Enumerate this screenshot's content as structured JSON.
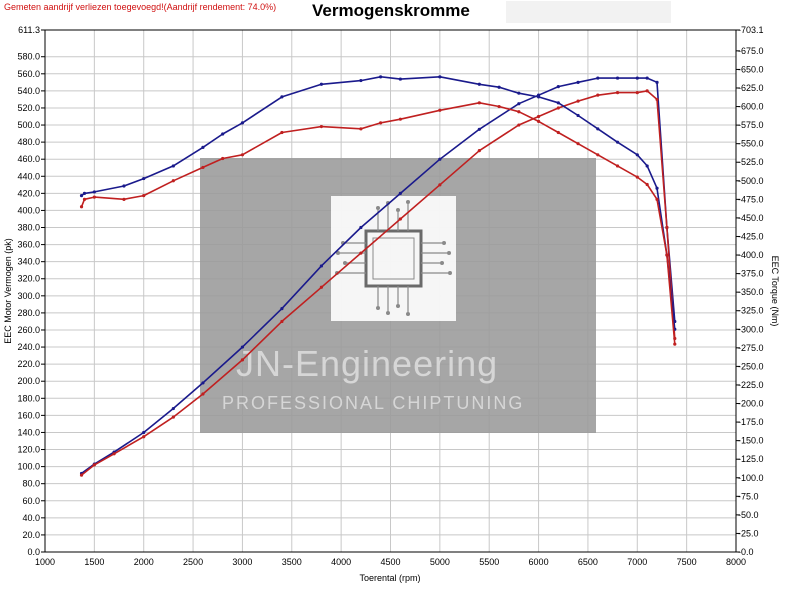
{
  "header": {
    "note": "Gemeten aandrijf verliezen toegevoegd!(Aandrijf rendement: 74.0%)",
    "title": "Vermogenskromme"
  },
  "watermark": {
    "brand": "JN-Engineering",
    "tagline": "PROFESSIONAL CHIPTUNING"
  },
  "chart_data": {
    "type": "line",
    "title": "Vermogenskromme",
    "xlabel": "Toerental (rpm)",
    "ylabel_left": "EEC Motor Vermogen (pk)",
    "ylabel_right": "EEC Torque (Nm)",
    "xlim": [
      1000,
      8000
    ],
    "ylim_left": [
      0,
      611.3
    ],
    "ylim_right": [
      0,
      703.1
    ],
    "grid": true,
    "x_ticks": [
      "1000",
      "1500",
      "2000",
      "2500",
      "3000",
      "3500",
      "4000",
      "4500",
      "5000",
      "5500",
      "6000",
      "6500",
      "7000",
      "7500",
      "8000"
    ],
    "left_ticks": [
      "0.0",
      "20.0",
      "40.0",
      "60.0",
      "80.0",
      "100.0",
      "120.0",
      "140.0",
      "160.0",
      "180.0",
      "200.0",
      "220.0",
      "240.0",
      "260.0",
      "280.0",
      "300.0",
      "320.0",
      "340.0",
      "360.0",
      "380.0",
      "400.0",
      "420.0",
      "440.0",
      "460.0",
      "480.0",
      "500.0",
      "520.0",
      "540.0",
      "560.0",
      "580.0",
      "611.3"
    ],
    "right_ticks": [
      "0.0",
      "25.0",
      "50.0",
      "75.0",
      "100.0",
      "125.0",
      "150.0",
      "175.0",
      "200.0",
      "225.0",
      "250.0",
      "275.0",
      "300.0",
      "325.0",
      "350.0",
      "375.0",
      "400.0",
      "425.0",
      "450.0",
      "475.0",
      "500.0",
      "525.0",
      "550.0",
      "575.0",
      "600.0",
      "625.0",
      "650.0",
      "675.0",
      "703.1"
    ],
    "series": [
      {
        "color": "#1a1a8c",
        "axis": "left",
        "x": [
          1370,
          1500,
          1700,
          2000,
          2300,
          2600,
          3000,
          3400,
          3800,
          4200,
          4600,
          5000,
          5400,
          5800,
          6000,
          6200,
          6400,
          6600,
          6800,
          7000,
          7100,
          7200,
          7300,
          7380
        ],
        "y": [
          92,
          103,
          117,
          140,
          168,
          198,
          240,
          285,
          335,
          380,
          420,
          460,
          495,
          525,
          535,
          545,
          550,
          555,
          555,
          555,
          555,
          550,
          380,
          270
        ]
      },
      {
        "color": "#c02020",
        "axis": "left",
        "x": [
          1370,
          1500,
          1700,
          2000,
          2300,
          2600,
          3000,
          3400,
          3800,
          4200,
          4600,
          5000,
          5400,
          5800,
          6000,
          6200,
          6400,
          6600,
          6800,
          7000,
          7100,
          7200,
          7300,
          7380
        ],
        "y": [
          90,
          102,
          115,
          135,
          158,
          185,
          225,
          270,
          310,
          350,
          390,
          430,
          470,
          500,
          510,
          520,
          528,
          535,
          538,
          538,
          540,
          530,
          380,
          250
        ]
      },
      {
        "color": "#1a1a8c",
        "axis": "right",
        "x": [
          1370,
          1400,
          1500,
          1800,
          2000,
          2300,
          2600,
          2800,
          3000,
          3400,
          3800,
          4200,
          4400,
          4600,
          5000,
          5400,
          5600,
          5800,
          6000,
          6200,
          6400,
          6600,
          6800,
          7000,
          7100,
          7200,
          7300,
          7380
        ],
        "y": [
          480,
          483,
          485,
          493,
          503,
          520,
          545,
          563,
          578,
          613,
          630,
          635,
          640,
          637,
          640,
          630,
          626,
          618,
          613,
          605,
          588,
          570,
          552,
          535,
          520,
          490,
          400,
          300
        ]
      },
      {
        "color": "#c02020",
        "axis": "right",
        "x": [
          1370,
          1400,
          1500,
          1800,
          2000,
          2300,
          2600,
          2800,
          3000,
          3400,
          3800,
          4200,
          4400,
          4600,
          5000,
          5400,
          5600,
          5800,
          6000,
          6200,
          6400,
          6600,
          6800,
          7000,
          7100,
          7200,
          7300,
          7380
        ],
        "y": [
          465,
          475,
          478,
          475,
          480,
          500,
          518,
          530,
          535,
          565,
          573,
          570,
          578,
          583,
          595,
          605,
          600,
          593,
          580,
          565,
          550,
          535,
          520,
          505,
          495,
          475,
          400,
          280
        ]
      }
    ]
  }
}
